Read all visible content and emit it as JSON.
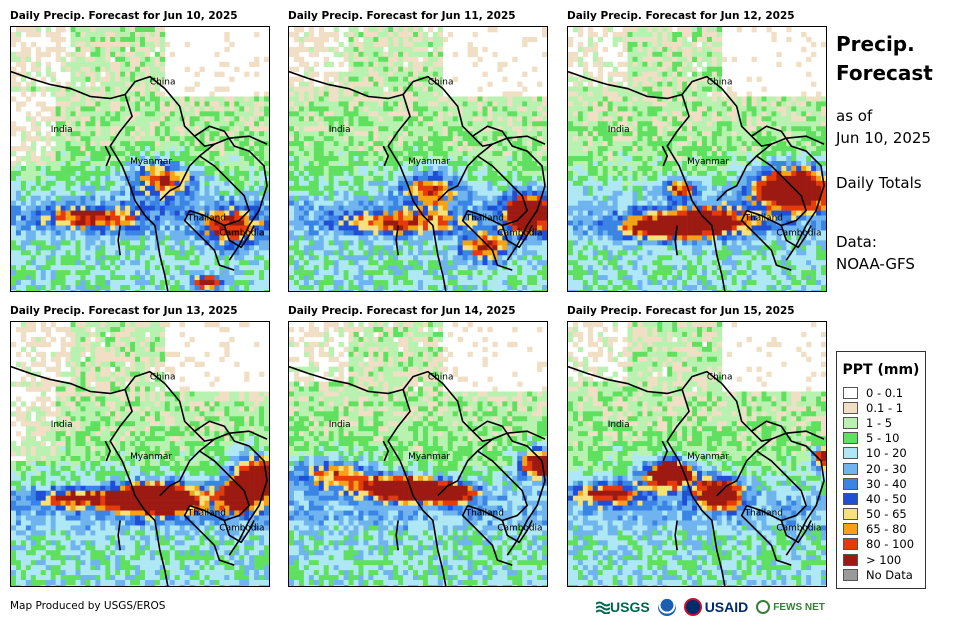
{
  "panels": [
    {
      "title": "Daily Precip. Forecast for Jun 10, 2025"
    },
    {
      "title": "Daily Precip. Forecast for Jun 11, 2025"
    },
    {
      "title": "Daily Precip. Forecast for Jun 12, 2025"
    },
    {
      "title": "Daily Precip. Forecast for Jun 13, 2025"
    },
    {
      "title": "Daily Precip. Forecast for Jun 14, 2025"
    },
    {
      "title": "Daily Precip. Forecast for Jun 15, 2025"
    }
  ],
  "map_labels": {
    "china": "China",
    "india": "India",
    "myanmar": "Myanmar",
    "thailand": "Thailand",
    "cambodia": "Cambodia"
  },
  "side": {
    "title_line1": "Precip.",
    "title_line2": "Forecast",
    "asof_line1": "as of",
    "asof_line2": "Jun 10, 2025",
    "totals": "Daily Totals",
    "data_line1": "Data:",
    "data_line2": "NOAA-GFS"
  },
  "legend": {
    "title": "PPT (mm)",
    "items": [
      {
        "label": "0 - 0.1",
        "color": "#ffffff"
      },
      {
        "label": "0.1 - 1",
        "color": "#f0dfc4"
      },
      {
        "label": "1 - 5",
        "color": "#b9f2b0"
      },
      {
        "label": "5 - 10",
        "color": "#5fe05f"
      },
      {
        "label": "10 - 20",
        "color": "#aee8f5"
      },
      {
        "label": "20 - 30",
        "color": "#6fb4ee"
      },
      {
        "label": "30 - 40",
        "color": "#3a84e6"
      },
      {
        "label": "40 - 50",
        "color": "#1f4fd6"
      },
      {
        "label": "50 - 65",
        "color": "#f7e27a"
      },
      {
        "label": "65 - 80",
        "color": "#f5a316"
      },
      {
        "label": "80 - 100",
        "color": "#e53a0c"
      },
      {
        "label": "> 100",
        "color": "#9c1a12"
      },
      {
        "label": "No Data",
        "color": "#9a9a9a"
      }
    ]
  },
  "credit": "Map Produced by USGS/EROS",
  "logos": {
    "usgs": "USGS",
    "usaid": "USAID",
    "fews": "FEWS NET"
  }
}
